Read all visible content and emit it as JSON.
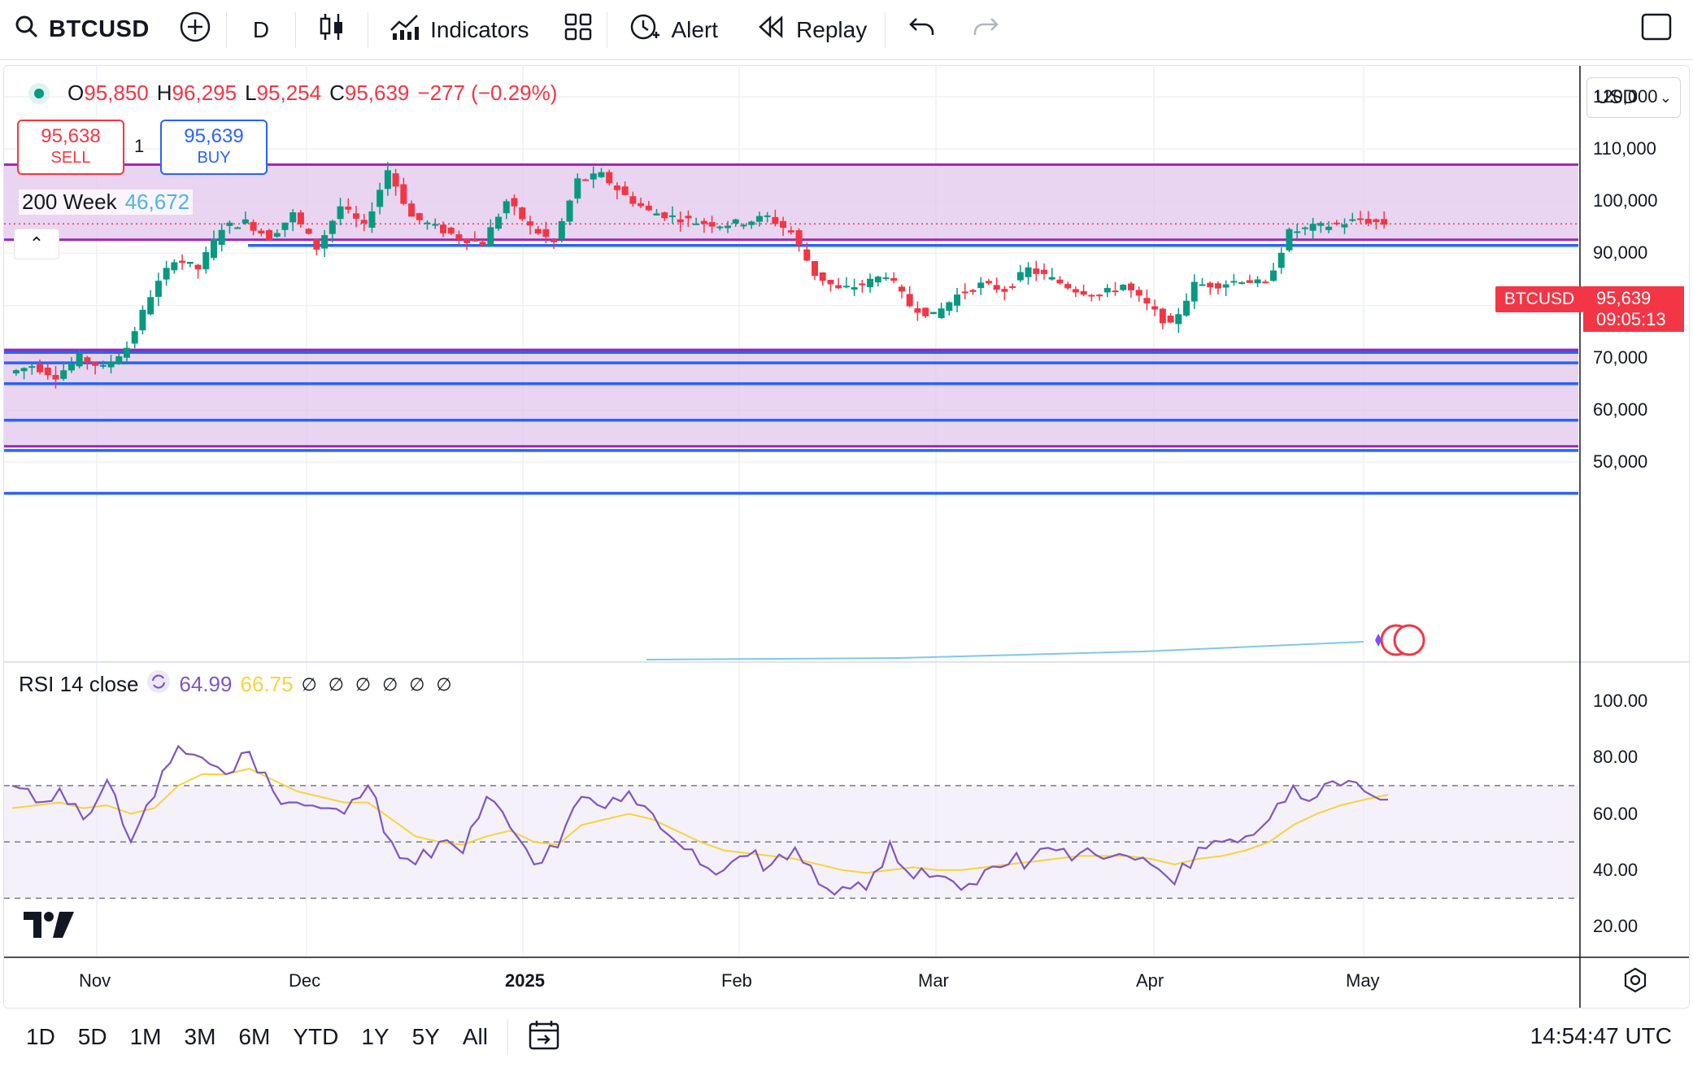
{
  "toolbar": {
    "symbol": "BTCUSD",
    "interval": "D",
    "indicators_label": "Indicators",
    "alert_label": "Alert",
    "replay_label": "Replay",
    "icons": [
      "search-icon",
      "plus-circle-icon",
      "candles-icon",
      "indicators-icon",
      "layout-grid-icon",
      "alert-clock-icon",
      "replay-icon",
      "undo-icon",
      "redo-icon",
      "fullscreen-icon"
    ]
  },
  "legend": {
    "o_label": "O",
    "o": "95,850",
    "h_label": "H",
    "h": "96,295",
    "l_label": "L",
    "l": "95,254",
    "c_label": "C",
    "c": "95,639",
    "change": "−277 (−0.29%)"
  },
  "trade": {
    "sell_price": "95,638",
    "sell_label": "SELL",
    "spread": "1",
    "buy_price": "95,639",
    "buy_label": "BUY"
  },
  "ma": {
    "label": "200 Week",
    "value": "46,672"
  },
  "currency": "USD",
  "price_axis": [
    "120,000",
    "110,000",
    "100,000",
    "90,000",
    "80,000",
    "70,000",
    "60,000",
    "50,000"
  ],
  "last_price": {
    "symbol": "BTCUSD",
    "price": "95,639",
    "countdown": "09:05:13"
  },
  "rsi": {
    "label": "RSI 14 close",
    "value": "64.99",
    "ma_value": "66.75",
    "empty_values": [
      "∅",
      "∅",
      "∅",
      "∅",
      "∅",
      "∅"
    ],
    "axis": [
      "100.00",
      "80.00",
      "60.00",
      "40.00",
      "20.00"
    ]
  },
  "time_axis": [
    "Nov",
    "Dec",
    "2025",
    "Feb",
    "Mar",
    "Apr",
    "May"
  ],
  "ranges": [
    "1D",
    "5D",
    "1M",
    "3M",
    "6M",
    "YTD",
    "1Y",
    "5Y",
    "All"
  ],
  "clock": "14:54:47 UTC",
  "colors": {
    "up": "#089981",
    "down": "#f23645",
    "zone": "#e1c7ec",
    "zone_line": "#9c27b0",
    "level_line": "#2962ff",
    "rsi": "#7e57c2",
    "rsi_ma": "#f7d33b"
  },
  "chart_data": {
    "type": "candlestick",
    "price_range": [
      43000,
      124000
    ],
    "x": [
      "Nov",
      "Dec",
      "2025",
      "Feb",
      "Mar",
      "Apr",
      "May"
    ],
    "close_path": [
      67000,
      68500,
      66500,
      70000,
      68000,
      72000,
      82000,
      89000,
      87000,
      95000,
      96000,
      93000,
      97500,
      91000,
      99000,
      95000,
      106000,
      97000,
      95000,
      93000,
      92000,
      100000,
      95000,
      92000,
      104000,
      105000,
      101000,
      98000,
      97000,
      96000,
      95500,
      96000,
      97000,
      94000,
      86000,
      83000,
      84000,
      86000,
      80000,
      78000,
      82000,
      84000,
      83000,
      87000,
      85000,
      83000,
      82000,
      84000,
      80000,
      76000,
      84000,
      84000,
      85000,
      84000,
      94000,
      95000,
      95500,
      96500,
      95639
    ],
    "zones": [
      [
        92600,
        107000
      ],
      [
        53000,
        71500
      ]
    ],
    "levels": [
      91500,
      71000,
      69000,
      65000,
      58000,
      52200,
      44000
    ],
    "rsi_path": [
      70,
      64,
      69,
      58,
      72,
      50,
      66,
      84,
      80,
      74,
      82,
      68,
      64,
      62,
      60,
      70,
      50,
      42,
      50,
      46,
      66,
      55,
      42,
      48,
      66,
      62,
      68,
      60,
      50,
      42,
      40,
      45,
      42,
      48,
      35,
      34,
      33,
      50,
      37,
      38,
      33,
      40,
      42,
      44,
      47,
      46,
      44,
      45,
      42,
      35,
      48,
      50,
      52,
      58,
      70,
      66,
      70,
      68,
      64.99
    ],
    "rsi_ma_path": [
      62,
      63,
      64,
      62,
      63,
      60,
      62,
      70,
      74,
      74,
      76,
      72,
      68,
      66,
      64,
      64,
      58,
      52,
      50,
      49,
      52,
      54,
      50,
      49,
      56,
      58,
      60,
      58,
      54,
      50,
      47,
      46,
      45,
      44,
      42,
      40,
      39,
      40,
      41,
      40,
      40,
      41,
      42,
      43,
      44,
      45,
      45,
      45,
      44,
      42,
      44,
      45,
      47,
      50,
      56,
      60,
      63,
      65,
      66.75
    ]
  }
}
